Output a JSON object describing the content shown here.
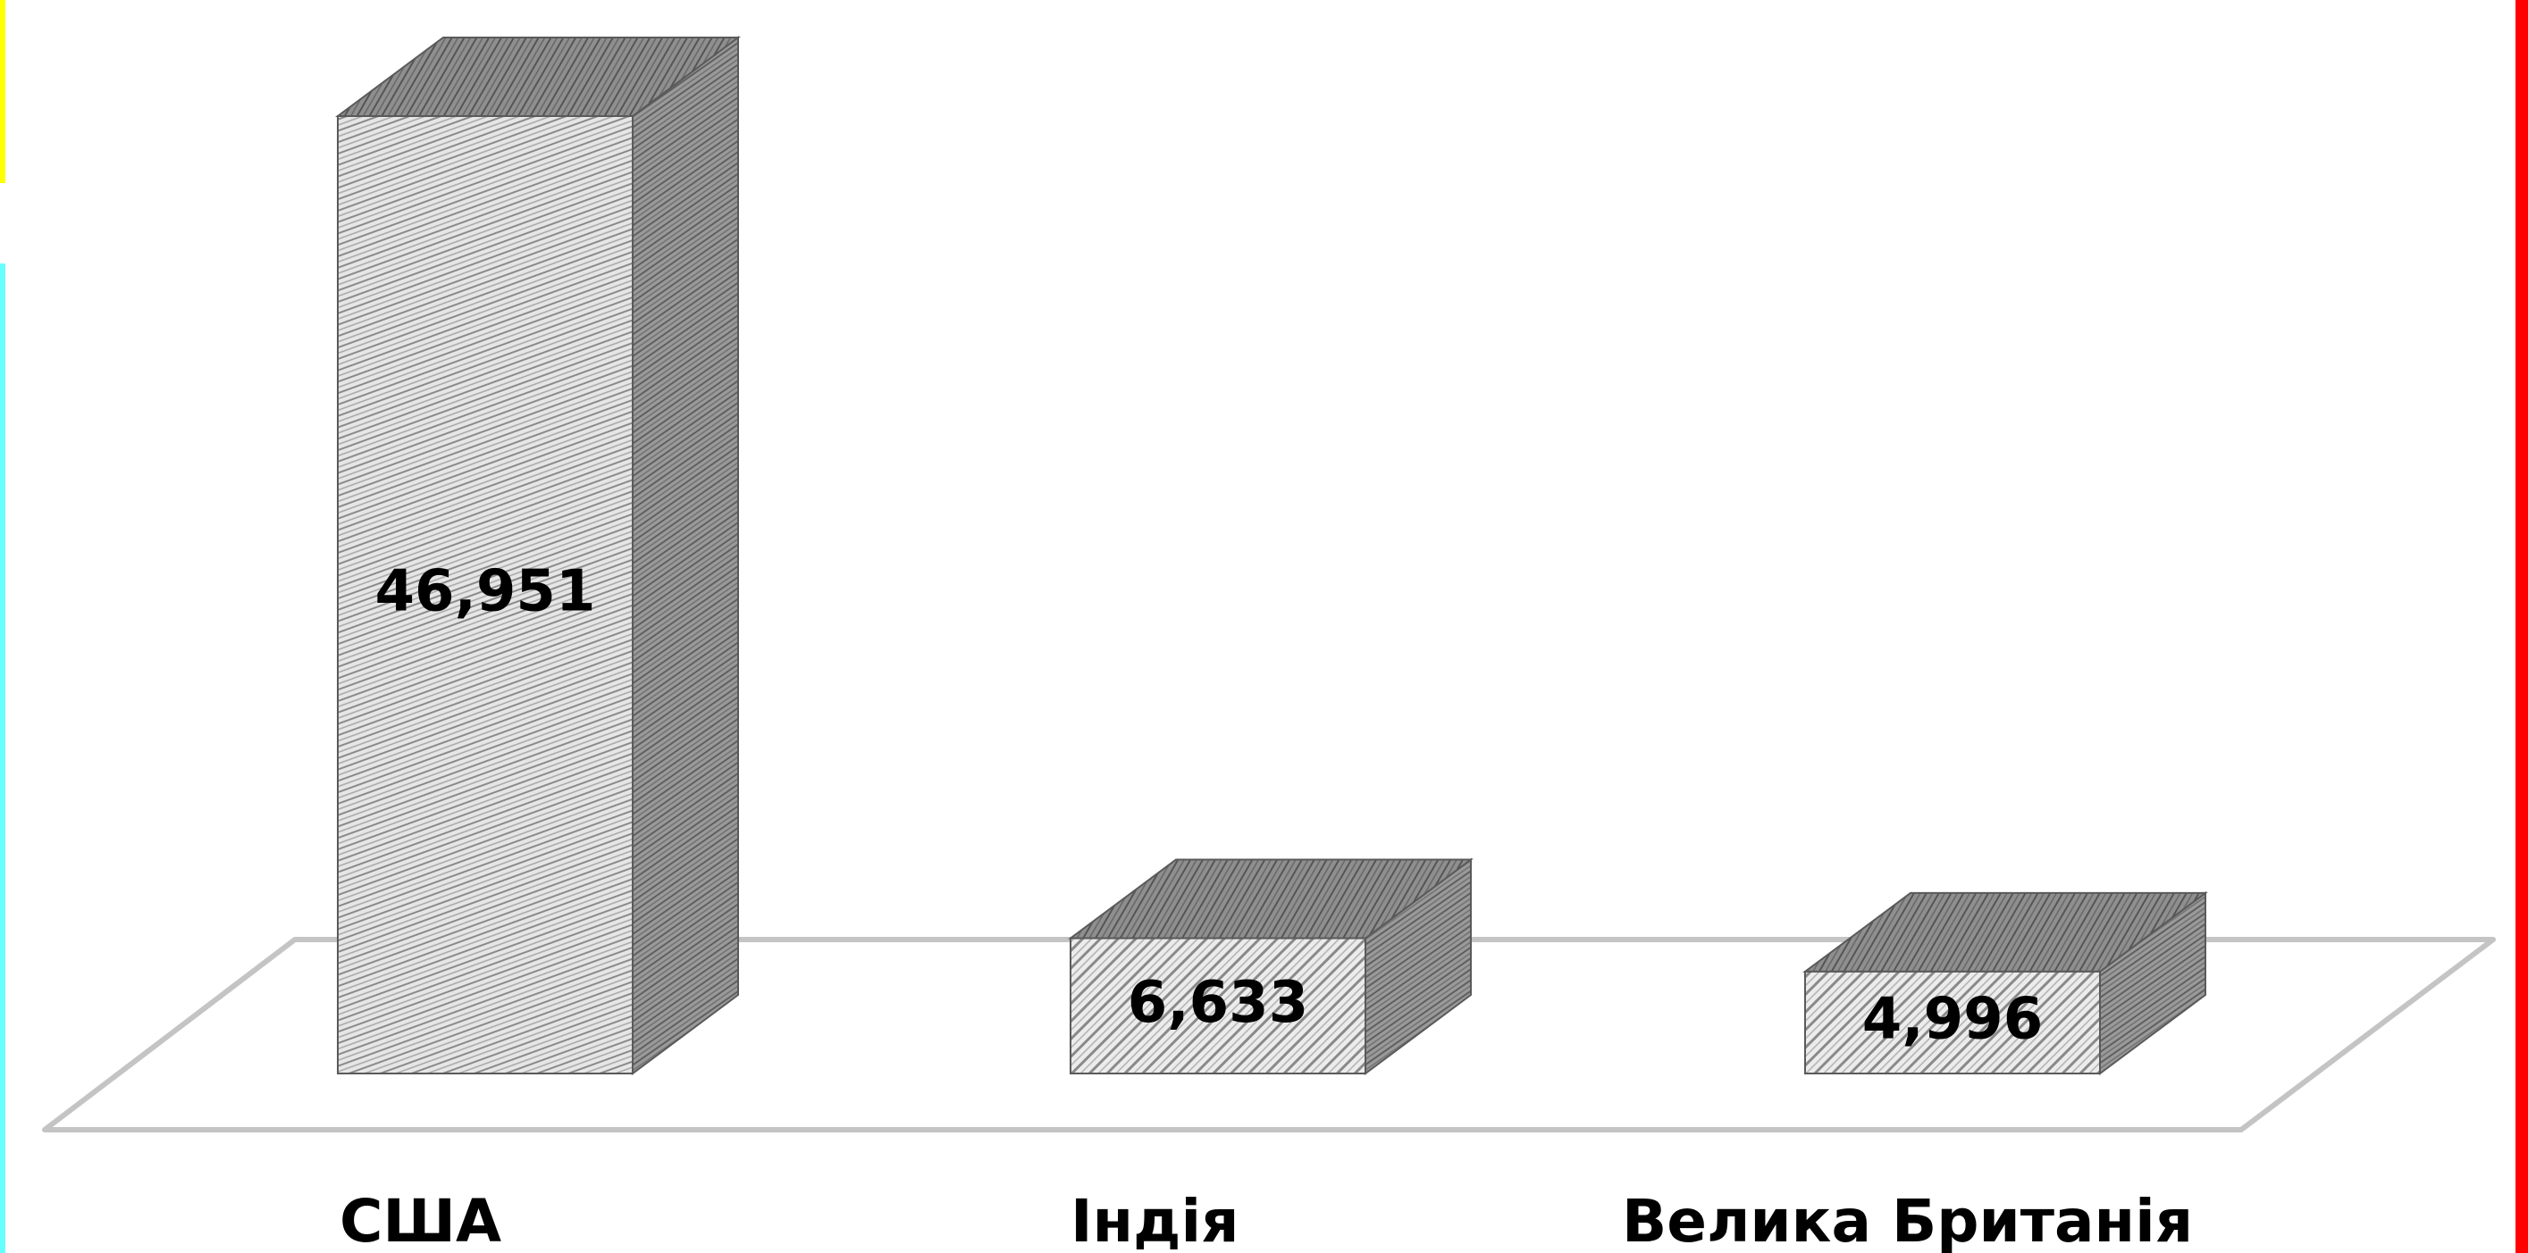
{
  "chart_data": {
    "type": "bar",
    "categories": [
      "США",
      "Індія",
      "Велика Британія"
    ],
    "values": [
      46.951,
      6.633,
      4.996
    ],
    "data_labels": [
      "46,951",
      "6,633",
      "4,996"
    ],
    "title": "",
    "xlabel": "",
    "ylabel": "",
    "ylim": [
      0,
      50
    ],
    "grid": false,
    "legend": "none",
    "style": "3d-column",
    "colors": {
      "front": "#d9d9d9",
      "side": "#8c8c8c",
      "top": "#7f7f7f",
      "edge": "#5a5a5a",
      "floor": "#bfbfbf",
      "accent_left_top": "#ffff00",
      "accent_left": "#66ffff",
      "accent_right": "#ff0000"
    }
  }
}
